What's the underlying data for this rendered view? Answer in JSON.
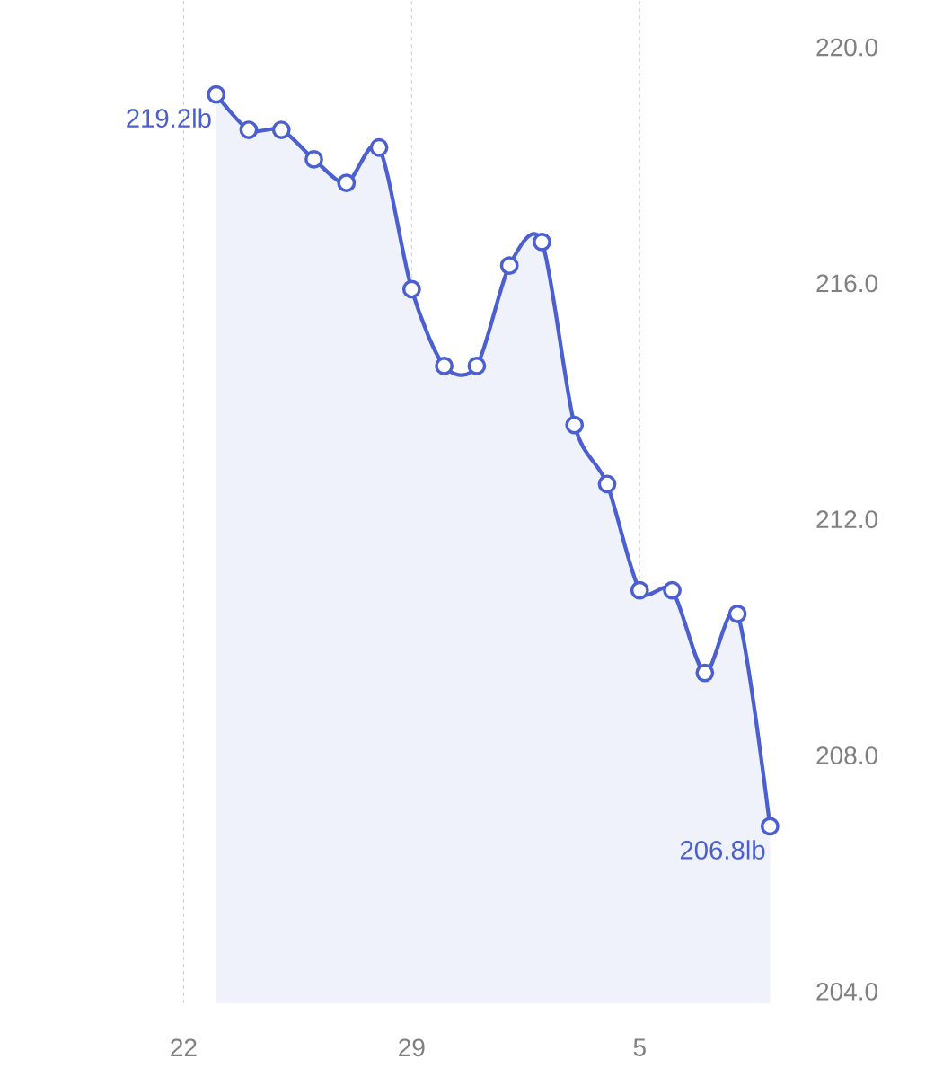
{
  "chart_data": {
    "type": "area",
    "categories": [
      "22",
      null,
      null,
      null,
      null,
      null,
      null,
      "29",
      null,
      null,
      null,
      null,
      null,
      null,
      "5",
      null,
      null,
      null,
      null
    ],
    "series": [
      {
        "color": "#4c5fd0",
        "values": [
          null,
          219.2,
          218.6,
          218.6,
          218.1,
          217.7,
          218.3,
          215.9,
          214.6,
          214.6,
          216.3,
          216.7,
          213.6,
          212.6,
          210.8,
          210.8,
          209.4,
          210.4,
          206.8
        ],
        "value_labels": [
          null,
          "219.2lb",
          null,
          null,
          null,
          null,
          null,
          null,
          null,
          null,
          null,
          null,
          null,
          null,
          null,
          null,
          null,
          null,
          "206.8lb"
        ]
      }
    ],
    "ylim": [
      203.8,
      220.8
    ],
    "yticks": [
      {
        "value": 204,
        "label": "204.0"
      },
      {
        "value": 208,
        "label": "208.0"
      },
      {
        "value": 212,
        "label": "212.0"
      },
      {
        "value": 216,
        "label": "216.0"
      },
      {
        "value": 220,
        "label": "220.0"
      }
    ],
    "grid": "x",
    "marker": "circle",
    "line_style": "solid"
  }
}
